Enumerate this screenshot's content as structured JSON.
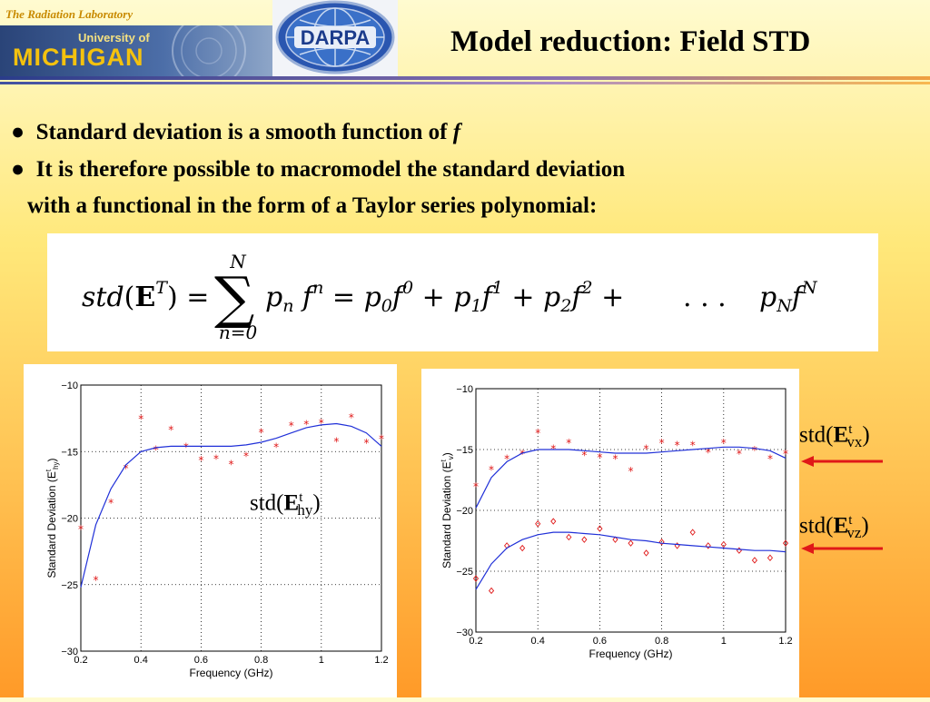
{
  "header": {
    "lab_name": "The Radiation Laboratory",
    "univ_line1": "University of",
    "univ_line2": "MICHIGAN",
    "darpa_text": "DARPA",
    "title": "Model reduction: Field STD"
  },
  "bullets": {
    "b1_text": "Standard deviation is a smooth function of",
    "b1_var": "f",
    "b2_line1": "It is therefore possible to macromodel the standard deviation",
    "b2_line2": "with a functional in the form of a Taylor series polynomial:"
  },
  "equation": {
    "sum_upper": "N",
    "sum_lower": "n=0"
  },
  "labels": {
    "std_prefix": "std(",
    "std_E": "E",
    "std_sup": "t",
    "std_close": ")",
    "hy_sub": "hy",
    "vx_sub": "vx",
    "vz_sub": "vz"
  },
  "colors": {
    "fit_line": "#2030d8",
    "data_marker": "#e01818",
    "arrow": "#e01818"
  },
  "chart_data": [
    {
      "type": "scatter",
      "xlabel": "Frequency (GHz)",
      "ylabel": "Standard Deviation (E",
      "ylabel_sup": "t",
      "ylabel_sub": "hy",
      "xlim": [
        0.2,
        1.2
      ],
      "ylim": [
        -30,
        -10
      ],
      "xticks": [
        "0.2",
        "0.4",
        "0.6",
        "0.8",
        "1",
        "1.2"
      ],
      "yticks": [
        "-10",
        "-15",
        "-20",
        "-25",
        "-30"
      ],
      "grid": true,
      "series": [
        {
          "marker": "star",
          "x": [
            0.2,
            0.25,
            0.3,
            0.35,
            0.4,
            0.45,
            0.5,
            0.55,
            0.6,
            0.65,
            0.7,
            0.75,
            0.8,
            0.85,
            0.9,
            0.95,
            1.0,
            1.05,
            1.1,
            1.15,
            1.2
          ],
          "values": [
            -20.8,
            -24.6,
            -18.8,
            -16.2,
            -12.5,
            -14.8,
            -13.3,
            -14.6,
            -15.6,
            -15.5,
            -15.9,
            -15.3,
            -13.5,
            -14.6,
            -13.0,
            -12.9,
            -12.8,
            -14.2,
            -12.4,
            -14.3,
            -14.0
          ]
        },
        {
          "marker": "line",
          "x": [
            0.2,
            0.25,
            0.3,
            0.35,
            0.4,
            0.45,
            0.5,
            0.55,
            0.6,
            0.65,
            0.7,
            0.75,
            0.8,
            0.85,
            0.9,
            0.95,
            1.0,
            1.05,
            1.1,
            1.15,
            1.2
          ],
          "values": [
            -25.2,
            -20.5,
            -17.8,
            -16.0,
            -15.0,
            -14.7,
            -14.6,
            -14.6,
            -14.6,
            -14.6,
            -14.6,
            -14.5,
            -14.3,
            -14.0,
            -13.6,
            -13.2,
            -13.0,
            -12.9,
            -13.1,
            -13.6,
            -14.6
          ]
        }
      ]
    },
    {
      "type": "scatter",
      "xlabel": "Frequency (GHz)",
      "ylabel": "Standard Deviation (E",
      "ylabel_sup": "t",
      "ylabel_sub": "v",
      "xlim": [
        0.2,
        1.2
      ],
      "ylim": [
        -30,
        -10
      ],
      "xticks": [
        "0.2",
        "0.4",
        "0.6",
        "0.8",
        "1",
        "1.2"
      ],
      "yticks": [
        "-10",
        "-15",
        "-20",
        "-25",
        "-30"
      ],
      "grid": true,
      "series": [
        {
          "marker": "star",
          "x": [
            0.2,
            0.25,
            0.3,
            0.35,
            0.4,
            0.45,
            0.5,
            0.55,
            0.6,
            0.65,
            0.7,
            0.75,
            0.8,
            0.85,
            0.9,
            0.95,
            1.0,
            1.05,
            1.1,
            1.15,
            1.2
          ],
          "values": [
            -18.0,
            -16.6,
            -15.7,
            -15.3,
            -13.6,
            -14.9,
            -14.4,
            -15.4,
            -15.6,
            -15.7,
            -16.7,
            -14.9,
            -14.4,
            -14.6,
            -14.6,
            -15.2,
            -14.4,
            -15.3,
            -15.0,
            -15.7,
            -15.3
          ]
        },
        {
          "marker": "line",
          "x": [
            0.2,
            0.25,
            0.3,
            0.35,
            0.4,
            0.45,
            0.5,
            0.55,
            0.6,
            0.65,
            0.7,
            0.75,
            0.8,
            0.85,
            0.9,
            0.95,
            1.0,
            1.05,
            1.1,
            1.15,
            1.2
          ],
          "values": [
            -19.8,
            -17.3,
            -16.0,
            -15.3,
            -15.0,
            -15.0,
            -15.0,
            -15.1,
            -15.2,
            -15.3,
            -15.3,
            -15.3,
            -15.2,
            -15.1,
            -15.0,
            -14.9,
            -14.8,
            -14.8,
            -14.9,
            -15.1,
            -15.7
          ]
        },
        {
          "marker": "diamond",
          "x": [
            0.2,
            0.25,
            0.3,
            0.35,
            0.4,
            0.45,
            0.5,
            0.55,
            0.6,
            0.65,
            0.7,
            0.75,
            0.8,
            0.85,
            0.9,
            0.95,
            1.0,
            1.05,
            1.1,
            1.15,
            1.2
          ],
          "values": [
            -25.6,
            -26.6,
            -22.9,
            -23.1,
            -21.1,
            -20.9,
            -22.2,
            -22.4,
            -21.5,
            -22.4,
            -22.7,
            -23.5,
            -22.6,
            -22.9,
            -21.8,
            -22.9,
            -22.8,
            -23.3,
            -24.1,
            -23.9,
            -22.7
          ]
        },
        {
          "marker": "line",
          "x": [
            0.2,
            0.25,
            0.3,
            0.35,
            0.4,
            0.45,
            0.5,
            0.55,
            0.6,
            0.65,
            0.7,
            0.75,
            0.8,
            0.85,
            0.9,
            0.95,
            1.0,
            1.05,
            1.1,
            1.15,
            1.2
          ],
          "values": [
            -26.5,
            -24.4,
            -23.1,
            -22.4,
            -22.0,
            -21.8,
            -21.8,
            -21.9,
            -22.0,
            -22.2,
            -22.4,
            -22.5,
            -22.7,
            -22.8,
            -22.9,
            -23.0,
            -23.1,
            -23.2,
            -23.3,
            -23.3,
            -23.4
          ]
        }
      ]
    }
  ]
}
